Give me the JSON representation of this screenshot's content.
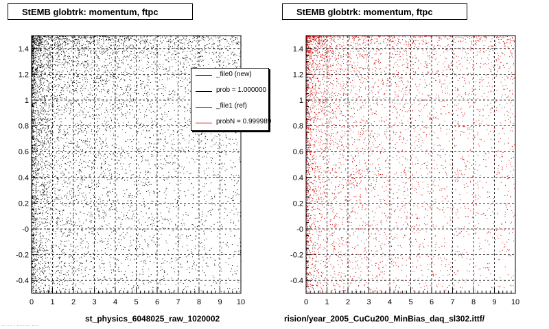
{
  "panels": [
    {
      "title": "StEMB globtrk: momentum, ftpc",
      "xlabel": "st_physics_6048025_raw_1020002"
    },
    {
      "title": "StEMB globtrk: momentum, ftpc",
      "xlabel": "rision/year_2005_CuCu200_MinBias_daq_sl302.ittf/"
    }
  ],
  "legend": {
    "entries": [
      {
        "label": "_file0 (new)",
        "color": "#000000"
      },
      {
        "label": "prob = 1.000000",
        "color": "#000000"
      },
      {
        "label": "_file1 (ref)",
        "color": "#cc0000"
      },
      {
        "label": "probN = 0.999989",
        "color": "#cc0000"
      }
    ]
  },
  "footer": "... ... . ......... ....",
  "chart_data": [
    {
      "type": "scatter",
      "title": "StEMB globtrk: momentum, ftpc",
      "xlabel": "st_physics_6048025_raw_1020002",
      "ylabel": "",
      "xlim": [
        0,
        10
      ],
      "ylim": [
        -0.5,
        1.5
      ],
      "xticks": [
        0,
        1,
        2,
        3,
        4,
        5,
        6,
        7,
        8,
        9,
        10
      ],
      "yticks": [
        -0.4,
        -0.2,
        0,
        0.2,
        0.4,
        0.6,
        0.8,
        1,
        1.2,
        1.4
      ],
      "ytick_labels": [
        "-0.4",
        "-0.2",
        "-0",
        "0.2",
        "0.4",
        "0.6",
        "0.8",
        "1",
        "1.2",
        "1.4"
      ],
      "grid": true,
      "color": "#000000",
      "legend_placement": "top-right",
      "series": [
        {
          "name": "_file0 (new)",
          "distribution": "dense near x=0-1 and y=0.5-1.5, sparse toward large x and low y",
          "n_points": 6500
        }
      ]
    },
    {
      "type": "scatter",
      "title": "StEMB globtrk: momentum, ftpc",
      "xlabel": "rision/year_2005_CuCu200_MinBias_daq_sl302.ittf/",
      "ylabel": "",
      "xlim": [
        0,
        10
      ],
      "ylim": [
        -0.5,
        1.5
      ],
      "xticks": [
        0,
        1,
        2,
        3,
        4,
        5,
        6,
        7,
        8,
        9,
        10
      ],
      "yticks": [
        -0.4,
        -0.2,
        0,
        0.2,
        0.4,
        0.6,
        0.8,
        1,
        1.2,
        1.4
      ],
      "ytick_labels": [
        "-0.4",
        "-0.2",
        "-0",
        "0.2",
        "0.4",
        "0.6",
        "0.8",
        "1",
        "1.2",
        "1.4"
      ],
      "grid": true,
      "color": "#cc0000",
      "series": [
        {
          "name": "_file1 (ref)",
          "distribution": "dense near x=0-1 and y=0.5-1.5, sparse toward large x and low y",
          "n_points": 5000
        }
      ]
    }
  ]
}
